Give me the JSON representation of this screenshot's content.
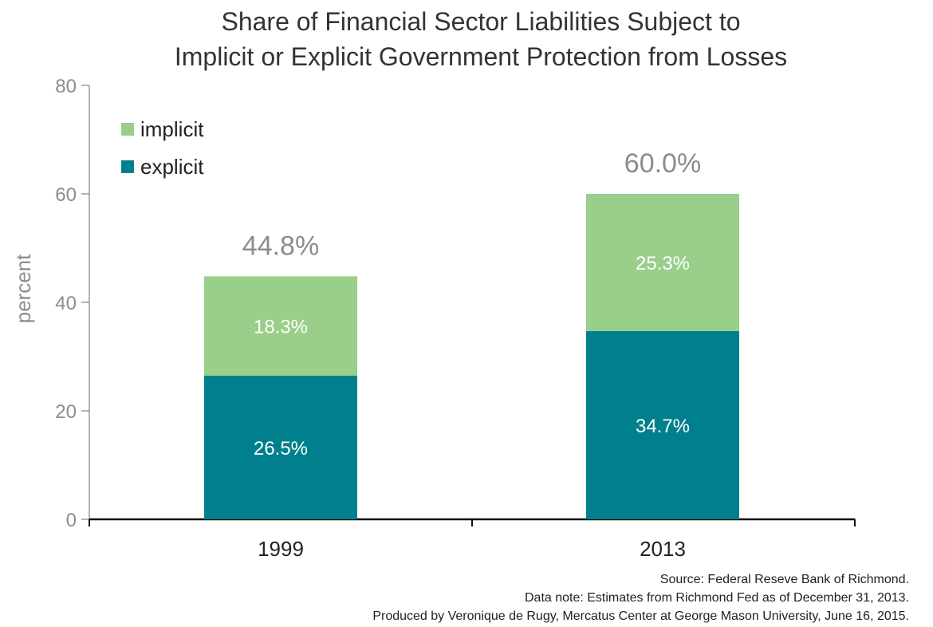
{
  "chart_data": {
    "type": "bar",
    "stacked": true,
    "title_lines": [
      "Share of Financial Sector Liabilities Subject to",
      "Implicit or Explicit Government Protection from Losses"
    ],
    "xlabel": "",
    "ylabel": "percent",
    "ylim": [
      0,
      80
    ],
    "yticks": [
      0,
      20,
      40,
      60,
      80
    ],
    "categories": [
      "1999",
      "2013"
    ],
    "series": [
      {
        "name": "explicit",
        "values": [
          26.5,
          34.7
        ],
        "labels": [
          "26.5%",
          "34.7%"
        ],
        "color": "#00808c"
      },
      {
        "name": "implicit",
        "values": [
          18.3,
          25.3
        ],
        "labels": [
          "18.3%",
          "25.3%"
        ],
        "color": "#99cf8a"
      }
    ],
    "totals": [
      44.8,
      60.0
    ],
    "total_labels": [
      "44.8%",
      "60.0%"
    ],
    "legend_position": "top-left",
    "grid": false
  },
  "notes": [
    "Source: Federal Reseve Bank of Richmond.",
    "Data note: Estimates from Richmond Fed as of December 31, 2013.",
    "Produced by Veronique de Rugy, Mercatus Center at George Mason University, June 16, 2015."
  ]
}
